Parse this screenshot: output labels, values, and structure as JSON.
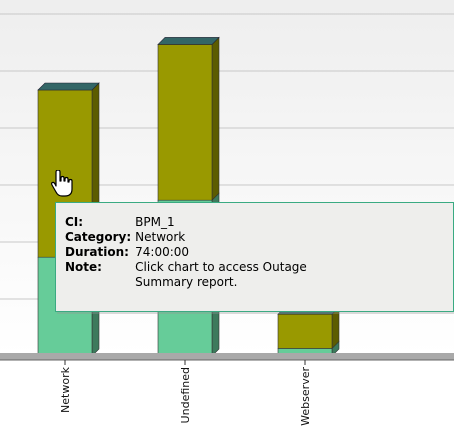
{
  "chart_data": {
    "type": "bar",
    "stacked": true,
    "render_3d": true,
    "categories": [
      "Network",
      "Undefined",
      "Webserver"
    ],
    "series": [
      {
        "color": "#66cc99",
        "values": [
          52,
          82,
          4
        ]
      },
      {
        "color": "#999900",
        "values": [
          88,
          82,
          18
        ]
      }
    ],
    "ylim": [
      0,
      180
    ],
    "grid": true,
    "legend": "none"
  },
  "tooltip": {
    "ci_label": "CI:",
    "ci_value": "BPM_1",
    "category_label": "Category:",
    "category_value": "Network",
    "duration_label": "Duration:",
    "duration_value": "74:00:00",
    "note_label": "Note:",
    "note_value": "Click chart to access Outage Summary report."
  },
  "colors": {
    "background_top": "#eeeeee",
    "background_bottom": "#ffffff",
    "gridline": "#c8c8c8",
    "axis_floor": "#a9a9a9",
    "bar_top_cap": "#336666",
    "tooltip_border": "#3aaa82",
    "tooltip_bg": "#eeeeec"
  },
  "icons": {
    "cursor": "hand-pointer-icon"
  }
}
